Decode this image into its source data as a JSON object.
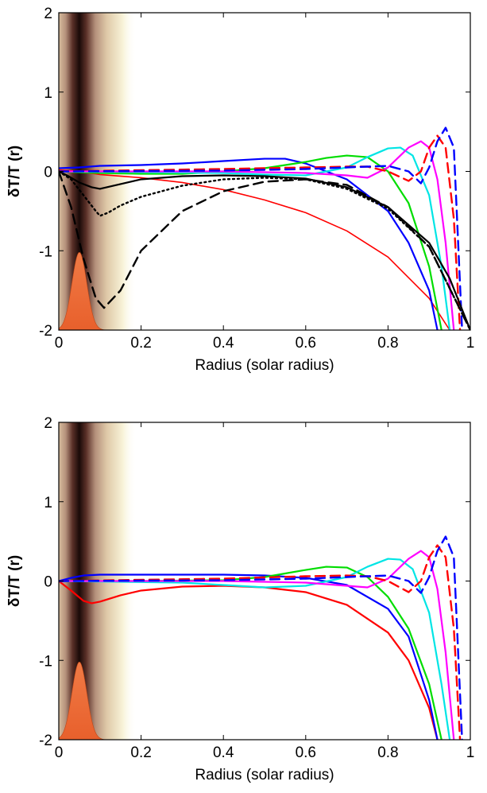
{
  "chart_data": [
    {
      "type": "line",
      "xlabel": "Radius (solar radius)",
      "ylabel": "δT/T (r)",
      "xlim": [
        0,
        1
      ],
      "ylim": [
        -2,
        2
      ],
      "xticks": [
        "0",
        "0.2",
        "0.4",
        "0.6",
        "0.8",
        "1"
      ],
      "yticks": [
        "-2",
        "-1",
        "0",
        "1",
        "2"
      ],
      "grid": false,
      "band": {
        "center": 0.05,
        "color_core": "#1a0a08",
        "color_edge": "#f8f3d8"
      },
      "peak": {
        "center": 0.05,
        "height": -1.02,
        "color": "#e8602c"
      },
      "series": [
        {
          "color": "#ff0000",
          "style": "solid",
          "width": 1.6,
          "x": [
            0,
            0.05,
            0.1,
            0.2,
            0.3,
            0.4,
            0.5,
            0.6,
            0.7,
            0.8,
            0.9,
            0.95
          ],
          "y": [
            0.02,
            0.0,
            -0.04,
            -0.08,
            -0.14,
            -0.23,
            -0.36,
            -0.52,
            -0.75,
            -1.08,
            -1.6,
            -2.0
          ]
        },
        {
          "color": "#0000ff",
          "style": "solid",
          "width": 2.2,
          "x": [
            0,
            0.05,
            0.1,
            0.2,
            0.3,
            0.4,
            0.5,
            0.55,
            0.6,
            0.7,
            0.8,
            0.85,
            0.9,
            0.92
          ],
          "y": [
            0.04,
            0.05,
            0.07,
            0.08,
            0.1,
            0.13,
            0.16,
            0.16,
            0.1,
            -0.1,
            -0.5,
            -0.9,
            -1.5,
            -2.0
          ]
        },
        {
          "color": "#00dd00",
          "style": "solid",
          "width": 2.2,
          "x": [
            0,
            0.1,
            0.2,
            0.3,
            0.4,
            0.5,
            0.6,
            0.65,
            0.7,
            0.75,
            0.8,
            0.85,
            0.9,
            0.93
          ],
          "y": [
            0.0,
            -0.02,
            -0.03,
            -0.03,
            0.0,
            0.04,
            0.12,
            0.17,
            0.2,
            0.18,
            0.0,
            -0.4,
            -1.2,
            -2.0
          ]
        },
        {
          "color": "#00e5e5",
          "style": "solid",
          "width": 2.2,
          "x": [
            0,
            0.2,
            0.4,
            0.5,
            0.6,
            0.7,
            0.75,
            0.8,
            0.83,
            0.86,
            0.9,
            0.93,
            0.95
          ],
          "y": [
            0.0,
            -0.01,
            -0.02,
            -0.04,
            -0.05,
            0.05,
            0.18,
            0.29,
            0.3,
            0.2,
            -0.3,
            -1.2,
            -2.0
          ]
        },
        {
          "color": "#ff00ff",
          "style": "solid",
          "width": 2.2,
          "x": [
            0,
            0.4,
            0.6,
            0.7,
            0.75,
            0.8,
            0.85,
            0.88,
            0.9,
            0.92,
            0.94,
            0.96
          ],
          "y": [
            0.0,
            0.0,
            -0.02,
            -0.05,
            -0.08,
            0.05,
            0.3,
            0.38,
            0.3,
            -0.1,
            -0.9,
            -2.0
          ]
        },
        {
          "color": "#ff0000",
          "style": "dashed",
          "width": 2.4,
          "x": [
            0,
            0.4,
            0.6,
            0.7,
            0.75,
            0.8,
            0.85,
            0.88,
            0.9,
            0.92,
            0.94,
            0.96,
            0.975
          ],
          "y": [
            0.0,
            0.03,
            0.05,
            0.06,
            0.06,
            0.0,
            -0.12,
            0.0,
            0.3,
            0.45,
            0.3,
            -0.6,
            -2.0
          ]
        },
        {
          "color": "#0000ff",
          "style": "dashed",
          "width": 2.4,
          "x": [
            0,
            0.4,
            0.6,
            0.7,
            0.8,
            0.85,
            0.88,
            0.9,
            0.92,
            0.94,
            0.96,
            0.98
          ],
          "y": [
            0.0,
            0.01,
            0.03,
            0.05,
            0.07,
            0.0,
            -0.15,
            0.05,
            0.38,
            0.55,
            0.3,
            -2.0
          ]
        },
        {
          "color": "#000000",
          "style": "solid",
          "width": 2.2,
          "x": [
            0,
            0.02,
            0.05,
            0.08,
            0.1,
            0.15,
            0.2,
            0.3,
            0.4,
            0.5,
            0.6,
            0.7,
            0.8,
            0.9,
            0.95,
            1.0
          ],
          "y": [
            0.0,
            -0.05,
            -0.14,
            -0.2,
            -0.22,
            -0.16,
            -0.1,
            -0.06,
            -0.05,
            -0.06,
            -0.09,
            -0.2,
            -0.45,
            -0.9,
            -1.35,
            -2.0
          ]
        },
        {
          "color": "#000000",
          "style": "dotted",
          "width": 2.4,
          "x": [
            0,
            0.03,
            0.06,
            0.09,
            0.1,
            0.12,
            0.15,
            0.2,
            0.3,
            0.4,
            0.5,
            0.6,
            0.7,
            0.8,
            0.9,
            1.0
          ],
          "y": [
            0.0,
            -0.1,
            -0.3,
            -0.5,
            -0.56,
            -0.52,
            -0.43,
            -0.32,
            -0.18,
            -0.1,
            -0.08,
            -0.1,
            -0.22,
            -0.47,
            -0.95,
            -2.0
          ]
        },
        {
          "color": "#000000",
          "style": "dashed",
          "width": 2.4,
          "x": [
            0,
            0.03,
            0.06,
            0.09,
            0.11,
            0.15,
            0.2,
            0.3,
            0.4,
            0.5,
            0.6,
            0.7,
            0.8,
            0.9,
            1.0
          ],
          "y": [
            0.0,
            -0.45,
            -1.1,
            -1.6,
            -1.72,
            -1.5,
            -1.0,
            -0.5,
            -0.25,
            -0.13,
            -0.1,
            -0.17,
            -0.45,
            -0.95,
            -2.0
          ]
        }
      ]
    },
    {
      "type": "line",
      "xlabel": "Radius (solar radius)",
      "ylabel": "δT/T (r)",
      "xlim": [
        0,
        1
      ],
      "ylim": [
        -2,
        2
      ],
      "xticks": [
        "0",
        "0.2",
        "0.4",
        "0.6",
        "0.8",
        "1"
      ],
      "yticks": [
        "-2",
        "-1",
        "0",
        "1",
        "2"
      ],
      "grid": false,
      "band": {
        "center": 0.05,
        "color_core": "#1a0a08",
        "color_edge": "#f8f3d8"
      },
      "peak": {
        "center": 0.05,
        "height": -1.02,
        "color": "#e8602c"
      },
      "series": [
        {
          "color": "#ff0000",
          "style": "solid",
          "width": 2.2,
          "x": [
            0,
            0.03,
            0.06,
            0.08,
            0.1,
            0.15,
            0.2,
            0.3,
            0.4,
            0.5,
            0.6,
            0.7,
            0.8,
            0.85,
            0.9,
            0.92
          ],
          "y": [
            0.0,
            -0.12,
            -0.25,
            -0.28,
            -0.26,
            -0.18,
            -0.12,
            -0.07,
            -0.06,
            -0.08,
            -0.14,
            -0.3,
            -0.65,
            -1.0,
            -1.6,
            -2.0
          ]
        },
        {
          "color": "#0000ff",
          "style": "solid",
          "width": 2.2,
          "x": [
            0,
            0.03,
            0.06,
            0.1,
            0.2,
            0.3,
            0.4,
            0.5,
            0.6,
            0.7,
            0.8,
            0.85,
            0.9,
            0.92
          ],
          "y": [
            0.0,
            0.04,
            0.07,
            0.08,
            0.08,
            0.08,
            0.08,
            0.07,
            0.04,
            -0.05,
            -0.35,
            -0.7,
            -1.5,
            -2.0
          ]
        },
        {
          "color": "#00dd00",
          "style": "solid",
          "width": 2.2,
          "x": [
            0,
            0.2,
            0.4,
            0.5,
            0.6,
            0.65,
            0.7,
            0.75,
            0.8,
            0.85,
            0.9,
            0.93
          ],
          "y": [
            0.0,
            0.0,
            0.01,
            0.05,
            0.14,
            0.18,
            0.17,
            0.05,
            -0.2,
            -0.6,
            -1.3,
            -2.0
          ]
        },
        {
          "color": "#00e5e5",
          "style": "solid",
          "width": 2.2,
          "x": [
            0,
            0.3,
            0.4,
            0.5,
            0.6,
            0.7,
            0.75,
            0.8,
            0.83,
            0.86,
            0.9,
            0.93,
            0.95
          ],
          "y": [
            0.0,
            -0.02,
            -0.05,
            -0.08,
            -0.06,
            0.05,
            0.18,
            0.28,
            0.27,
            0.15,
            -0.4,
            -1.3,
            -2.0
          ]
        },
        {
          "color": "#ff00ff",
          "style": "solid",
          "width": 2.2,
          "x": [
            0,
            0.4,
            0.6,
            0.7,
            0.75,
            0.8,
            0.85,
            0.88,
            0.9,
            0.92,
            0.94,
            0.96
          ],
          "y": [
            0.0,
            0.0,
            -0.02,
            -0.06,
            -0.08,
            0.03,
            0.28,
            0.38,
            0.3,
            -0.1,
            -0.9,
            -2.0
          ]
        },
        {
          "color": "#ff0000",
          "style": "dashed",
          "width": 2.4,
          "x": [
            0,
            0.4,
            0.6,
            0.7,
            0.75,
            0.8,
            0.85,
            0.88,
            0.9,
            0.92,
            0.94,
            0.96,
            0.975
          ],
          "y": [
            0.0,
            0.03,
            0.06,
            0.07,
            0.06,
            0.0,
            -0.14,
            0.0,
            0.3,
            0.45,
            0.3,
            -0.6,
            -2.0
          ]
        },
        {
          "color": "#0000ff",
          "style": "dashed",
          "width": 2.4,
          "x": [
            0,
            0.4,
            0.6,
            0.7,
            0.8,
            0.85,
            0.88,
            0.9,
            0.92,
            0.94,
            0.96,
            0.98
          ],
          "y": [
            0.0,
            0.01,
            0.03,
            0.05,
            0.07,
            0.0,
            -0.15,
            0.05,
            0.38,
            0.56,
            0.3,
            -2.0
          ]
        }
      ]
    }
  ]
}
